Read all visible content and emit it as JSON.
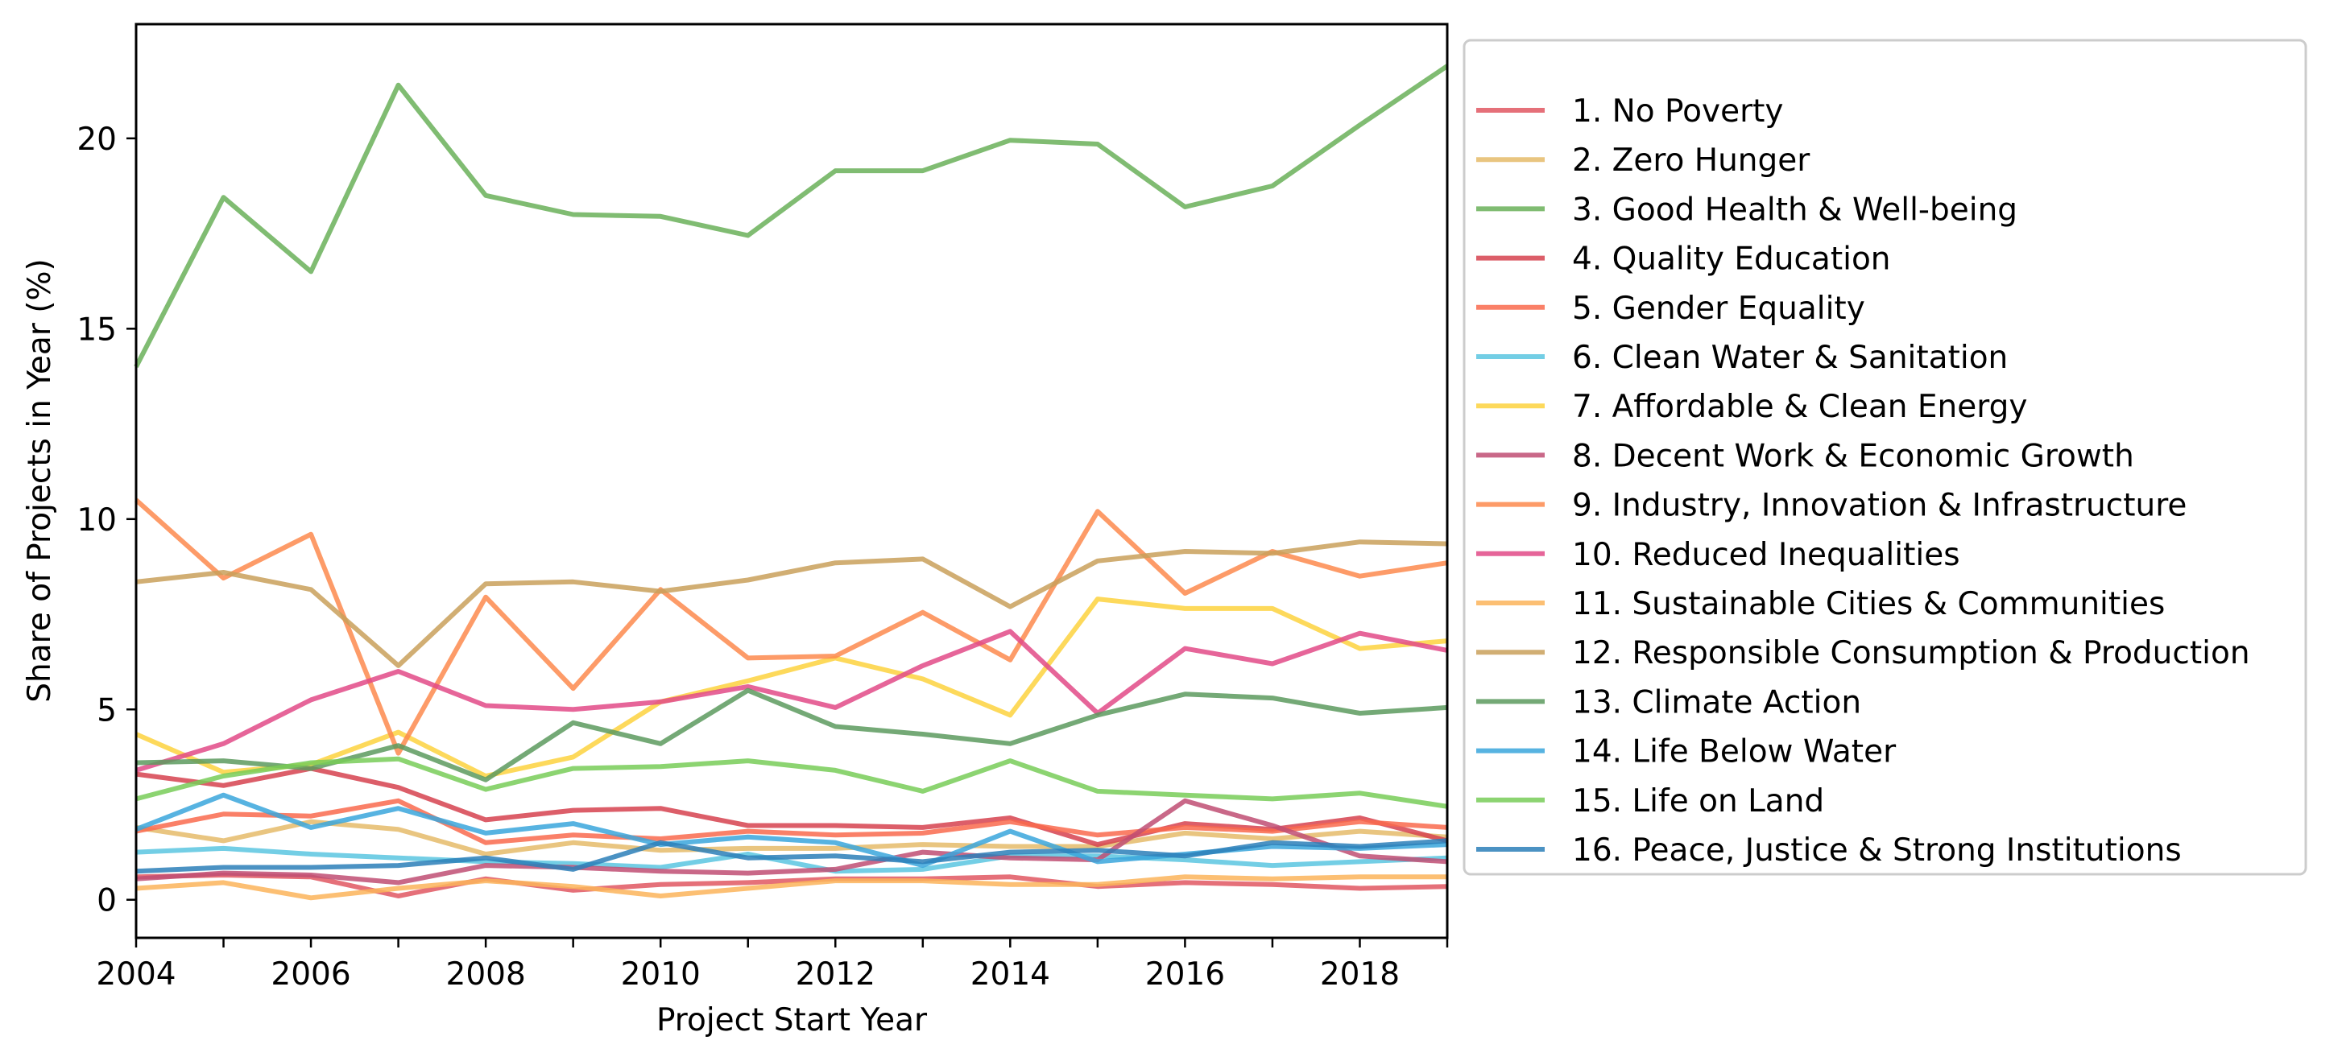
{
  "chart_data": {
    "type": "line",
    "title": "",
    "xlabel": "Project Start Year",
    "ylabel": "Share of Projects in Year (%)",
    "xlim": [
      2004,
      2019
    ],
    "ylim": [
      -1,
      23
    ],
    "xticks": [
      2004,
      2006,
      2008,
      2010,
      2012,
      2014,
      2016,
      2018
    ],
    "yticks": [
      0,
      5,
      10,
      15,
      20
    ],
    "grid": false,
    "legend_placement": "outside right",
    "x": [
      2004,
      2005,
      2006,
      2007,
      2008,
      2009,
      2010,
      2011,
      2012,
      2013,
      2014,
      2015,
      2016,
      2017,
      2018,
      2019
    ],
    "series": [
      {
        "name": "1. No Poverty",
        "color": "#e15762",
        "values": [
          0.6,
          0.65,
          0.6,
          0.1,
          0.55,
          0.25,
          0.4,
          0.45,
          0.55,
          0.55,
          0.6,
          0.35,
          0.45,
          0.4,
          0.3,
          0.35
        ]
      },
      {
        "name": "2. Zero Hunger",
        "color": "#e5bb6a",
        "values": [
          1.9,
          1.55,
          2.05,
          1.85,
          1.2,
          1.5,
          1.3,
          1.35,
          1.35,
          1.45,
          1.4,
          1.4,
          1.75,
          1.6,
          1.8,
          1.65
        ]
      },
      {
        "name": "3. Good Health & Well-being",
        "color": "#6ab059",
        "values": [
          14.0,
          18.45,
          16.5,
          21.4,
          18.5,
          18.0,
          17.95,
          17.45,
          19.15,
          19.15,
          19.95,
          19.85,
          18.2,
          18.75,
          20.35,
          21.9
        ]
      },
      {
        "name": "4. Quality Education",
        "color": "#d6424f",
        "values": [
          3.3,
          3.0,
          3.45,
          2.95,
          2.1,
          2.35,
          2.4,
          1.95,
          1.95,
          1.9,
          2.15,
          1.45,
          2.0,
          1.85,
          2.15,
          1.55
        ]
      },
      {
        "name": "5. Gender Equality",
        "color": "#f96a4e",
        "values": [
          1.8,
          2.25,
          2.2,
          2.6,
          1.5,
          1.7,
          1.6,
          1.8,
          1.7,
          1.75,
          2.05,
          1.7,
          1.9,
          1.8,
          2.05,
          1.9
        ]
      },
      {
        "name": "6. Clean Water & Sanitation",
        "color": "#5bc5e0",
        "values": [
          1.25,
          1.35,
          1.2,
          1.1,
          1.0,
          0.95,
          0.85,
          1.2,
          0.75,
          0.8,
          1.15,
          1.15,
          1.05,
          0.9,
          1.0,
          1.1
        ]
      },
      {
        "name": "7. Affordable & Clean Energy",
        "color": "#fdd23e",
        "values": [
          4.35,
          3.35,
          3.55,
          4.4,
          3.25,
          3.75,
          5.2,
          5.75,
          6.35,
          5.8,
          4.85,
          7.9,
          7.65,
          7.65,
          6.6,
          6.8
        ]
      },
      {
        "name": "8. Decent Work & Economic Growth",
        "color": "#bf4e73",
        "values": [
          0.55,
          0.7,
          0.65,
          0.45,
          0.9,
          0.85,
          0.75,
          0.7,
          0.8,
          1.25,
          1.1,
          1.05,
          2.6,
          1.95,
          1.15,
          1.0
        ]
      },
      {
        "name": "9. Industry, Innovation & Infrastructure",
        "color": "#fd8a4e",
        "values": [
          10.5,
          8.45,
          9.6,
          3.85,
          7.95,
          5.55,
          8.15,
          6.35,
          6.4,
          7.55,
          6.3,
          10.2,
          8.05,
          9.15,
          8.5,
          8.85
        ]
      },
      {
        "name": "10.  Reduced Inequalities",
        "color": "#e24a87",
        "values": [
          3.4,
          4.1,
          5.25,
          6.0,
          5.1,
          5.0,
          5.2,
          5.6,
          5.05,
          6.15,
          7.05,
          4.9,
          6.6,
          6.2,
          7.0,
          6.55
        ]
      },
      {
        "name": "11.  Sustainable Cities & Communities",
        "color": "#fbb45a",
        "values": [
          0.3,
          0.45,
          0.05,
          0.3,
          0.5,
          0.35,
          0.1,
          0.3,
          0.5,
          0.5,
          0.4,
          0.4,
          0.6,
          0.55,
          0.6,
          0.6
        ]
      },
      {
        "name": "12.  Responsible Consumption & Production",
        "color": "#c9a05a",
        "values": [
          8.35,
          8.6,
          8.15,
          6.15,
          8.3,
          8.35,
          8.1,
          8.4,
          8.85,
          8.95,
          7.7,
          8.9,
          9.15,
          9.1,
          9.4,
          9.35
        ]
      },
      {
        "name": "13.  Climate Action",
        "color": "#5c9a5e",
        "values": [
          3.6,
          3.65,
          3.45,
          4.05,
          3.15,
          4.65,
          4.1,
          5.5,
          4.55,
          4.35,
          4.1,
          4.85,
          5.4,
          5.3,
          4.9,
          5.05
        ]
      },
      {
        "name": "14.  Life Below Water",
        "color": "#3aa6dc",
        "values": [
          1.85,
          2.75,
          1.9,
          2.4,
          1.75,
          2.0,
          1.45,
          1.65,
          1.5,
          0.9,
          1.8,
          1.0,
          1.2,
          1.4,
          1.35,
          1.45
        ]
      },
      {
        "name": "15.  Life on Land",
        "color": "#78cc58",
        "values": [
          2.65,
          3.25,
          3.6,
          3.7,
          2.9,
          3.45,
          3.5,
          3.65,
          3.4,
          2.85,
          3.65,
          2.85,
          2.75,
          2.65,
          2.8,
          2.45
        ]
      },
      {
        "name": "16.  Peace, Justice & Strong Institutions",
        "color": "#2c7fb8",
        "values": [
          0.75,
          0.85,
          0.85,
          0.9,
          1.1,
          0.8,
          1.5,
          1.1,
          1.15,
          1.0,
          1.25,
          1.3,
          1.15,
          1.5,
          1.4,
          1.55
        ]
      }
    ]
  }
}
